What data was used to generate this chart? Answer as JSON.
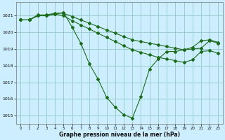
{
  "title": "Graphe pression niveau de la mer (hPa)",
  "background_color": "#cceeff",
  "grid_color": "#99cccc",
  "line_color": "#1a6b1a",
  "marker_color": "#1a6b1a",
  "xlim": [
    -0.5,
    23.5
  ],
  "ylim": [
    1014.5,
    1021.8
  ],
  "yticks": [
    1015,
    1016,
    1017,
    1018,
    1019,
    1020,
    1021
  ],
  "xticks": [
    0,
    1,
    2,
    3,
    4,
    5,
    6,
    7,
    8,
    9,
    10,
    11,
    12,
    13,
    14,
    15,
    16,
    17,
    18,
    19,
    20,
    21,
    22,
    23
  ],
  "series": [
    {
      "x": [
        0,
        1,
        2,
        3,
        4,
        5,
        6,
        7,
        8,
        9,
        10,
        11,
        12,
        13,
        14,
        15,
        16,
        17,
        18,
        19,
        20,
        21,
        22,
        23
      ],
      "y": [
        1020.75,
        1020.75,
        1021.05,
        1021.05,
        1021.15,
        1021.15,
        1020.95,
        1020.75,
        1020.55,
        1020.35,
        1020.15,
        1019.95,
        1019.75,
        1019.55,
        1019.45,
        1019.35,
        1019.25,
        1019.15,
        1019.05,
        1018.95,
        1019.1,
        1019.5,
        1019.55,
        1019.4
      ]
    },
    {
      "x": [
        0,
        1,
        2,
        3,
        4,
        5,
        6,
        7,
        8,
        9,
        10,
        11,
        12,
        13,
        14,
        15,
        16,
        17,
        18,
        19,
        20,
        21,
        22,
        23
      ],
      "y": [
        1020.75,
        1020.75,
        1021.0,
        1021.0,
        1021.1,
        1021.0,
        1020.7,
        1020.45,
        1020.2,
        1019.95,
        1019.7,
        1019.45,
        1019.2,
        1018.95,
        1018.8,
        1018.65,
        1018.5,
        1018.4,
        1018.3,
        1018.2,
        1018.35,
        1018.85,
        1018.9,
        1018.75
      ]
    },
    {
      "x": [
        0,
        1,
        2,
        3,
        4,
        5,
        6,
        7,
        8,
        9,
        10,
        11,
        12,
        13,
        14,
        15,
        16,
        17,
        18,
        19,
        20,
        21,
        22,
        23
      ],
      "y": [
        1020.75,
        1020.75,
        1021.0,
        1021.0,
        1021.1,
        1021.2,
        1020.3,
        1019.35,
        1018.1,
        1017.2,
        1016.1,
        1015.5,
        1015.05,
        1014.85,
        1016.15,
        1017.8,
        1018.4,
        1018.85,
        1018.85,
        1018.95,
        1019.0,
        1019.05,
        1019.5,
        1019.35
      ]
    }
  ]
}
